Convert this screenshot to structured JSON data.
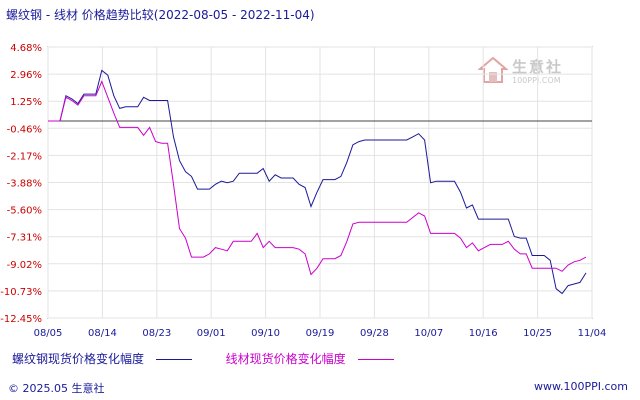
{
  "title": "螺纹钢 - 线材 价格趋势比较(2022-08-05 - 2022-11-04)",
  "watermark": {
    "name": "生意社",
    "url": "100PPI.COM"
  },
  "footer": {
    "copyright": "© 2025.05 生意社",
    "site": "www.100PPI.com"
  },
  "chart_data": {
    "type": "line",
    "title": "螺纹钢 - 线材 价格趋势比较(2022-08-05 - 2022-11-04)",
    "xlabel": "",
    "ylabel": "",
    "x_tick_labels": [
      "08/05",
      "08/14",
      "08/23",
      "09/01",
      "09/10",
      "09/19",
      "09/28",
      "10/07",
      "10/16",
      "10/25",
      "11/04"
    ],
    "y_tick_labels": [
      "4.68%",
      "2.96%",
      "1.25%",
      "-0.46%",
      "-2.17%",
      "-3.88%",
      "-5.60%",
      "-7.31%",
      "-9.02%",
      "-10.73%",
      "-12.45%"
    ],
    "ylim": [
      -12.45,
      4.68
    ],
    "xlim_days": [
      0,
      91
    ],
    "reference_line": 0,
    "grid": true,
    "legend_position": "bottom",
    "series": [
      {
        "name": "螺纹钢现货价格变化幅度",
        "color": "#1a1a9a",
        "points": [
          [
            0,
            0
          ],
          [
            1,
            0
          ],
          [
            2,
            0
          ],
          [
            3,
            1.6
          ],
          [
            4,
            1.4
          ],
          [
            5,
            1.1
          ],
          [
            6,
            1.7
          ],
          [
            7,
            1.7
          ],
          [
            8,
            1.7
          ],
          [
            9,
            3.2
          ],
          [
            10,
            2.9
          ],
          [
            11,
            1.6
          ],
          [
            12,
            0.8
          ],
          [
            13,
            0.9
          ],
          [
            14,
            0.9
          ],
          [
            15,
            0.9
          ],
          [
            16,
            1.5
          ],
          [
            17,
            1.3
          ],
          [
            18,
            1.3
          ],
          [
            19,
            1.3
          ],
          [
            20,
            1.3
          ],
          [
            21,
            -1.0
          ],
          [
            22,
            -2.5
          ],
          [
            23,
            -3.2
          ],
          [
            24,
            -3.5
          ],
          [
            25,
            -4.3
          ],
          [
            26,
            -4.3
          ],
          [
            27,
            -4.3
          ],
          [
            28,
            -4.0
          ],
          [
            29,
            -3.8
          ],
          [
            30,
            -3.9
          ],
          [
            31,
            -3.8
          ],
          [
            32,
            -3.3
          ],
          [
            33,
            -3.3
          ],
          [
            34,
            -3.3
          ],
          [
            35,
            -3.3
          ],
          [
            36,
            -3.0
          ],
          [
            37,
            -3.8
          ],
          [
            38,
            -3.4
          ],
          [
            39,
            -3.6
          ],
          [
            40,
            -3.6
          ],
          [
            41,
            -3.6
          ],
          [
            42,
            -4.0
          ],
          [
            43,
            -4.2
          ],
          [
            44,
            -5.4
          ],
          [
            45,
            -4.5
          ],
          [
            46,
            -3.7
          ],
          [
            47,
            -3.7
          ],
          [
            48,
            -3.7
          ],
          [
            49,
            -3.5
          ],
          [
            50,
            -2.6
          ],
          [
            51,
            -1.5
          ],
          [
            52,
            -1.3
          ],
          [
            53,
            -1.2
          ],
          [
            54,
            -1.2
          ],
          [
            55,
            -1.2
          ],
          [
            56,
            -1.2
          ],
          [
            57,
            -1.2
          ],
          [
            58,
            -1.2
          ],
          [
            59,
            -1.2
          ],
          [
            60,
            -1.2
          ],
          [
            61,
            -1.0
          ],
          [
            62,
            -0.8
          ],
          [
            63,
            -1.2
          ],
          [
            64,
            -3.9
          ],
          [
            65,
            -3.8
          ],
          [
            66,
            -3.8
          ],
          [
            67,
            -3.8
          ],
          [
            68,
            -3.8
          ],
          [
            69,
            -4.5
          ],
          [
            70,
            -5.5
          ],
          [
            71,
            -5.3
          ],
          [
            72,
            -6.2
          ],
          [
            73,
            -6.2
          ],
          [
            74,
            -6.2
          ],
          [
            75,
            -6.2
          ],
          [
            76,
            -6.2
          ],
          [
            77,
            -6.2
          ],
          [
            78,
            -7.3
          ],
          [
            79,
            -7.4
          ],
          [
            80,
            -7.4
          ],
          [
            81,
            -8.5
          ],
          [
            82,
            -8.5
          ],
          [
            83,
            -8.5
          ],
          [
            84,
            -8.8
          ],
          [
            85,
            -10.6
          ],
          [
            86,
            -10.9
          ],
          [
            87,
            -10.4
          ],
          [
            88,
            -10.3
          ],
          [
            89,
            -10.2
          ],
          [
            90,
            -9.6
          ]
        ]
      },
      {
        "name": "线材现货价格变化幅度",
        "color": "#cc00cc",
        "points": [
          [
            0,
            0
          ],
          [
            1,
            0
          ],
          [
            2,
            0
          ],
          [
            3,
            1.5
          ],
          [
            4,
            1.3
          ],
          [
            5,
            1.0
          ],
          [
            6,
            1.6
          ],
          [
            7,
            1.6
          ],
          [
            8,
            1.6
          ],
          [
            9,
            2.5
          ],
          [
            10,
            1.5
          ],
          [
            11,
            0.5
          ],
          [
            12,
            -0.4
          ],
          [
            13,
            -0.4
          ],
          [
            14,
            -0.4
          ],
          [
            15,
            -0.4
          ],
          [
            16,
            -0.9
          ],
          [
            17,
            -0.4
          ],
          [
            18,
            -1.3
          ],
          [
            19,
            -1.4
          ],
          [
            20,
            -1.4
          ],
          [
            21,
            -4.0
          ],
          [
            22,
            -6.8
          ],
          [
            23,
            -7.4
          ],
          [
            24,
            -8.6
          ],
          [
            25,
            -8.6
          ],
          [
            26,
            -8.6
          ],
          [
            27,
            -8.4
          ],
          [
            28,
            -8.0
          ],
          [
            29,
            -8.1
          ],
          [
            30,
            -8.2
          ],
          [
            31,
            -7.6
          ],
          [
            32,
            -7.6
          ],
          [
            33,
            -7.6
          ],
          [
            34,
            -7.6
          ],
          [
            35,
            -7.1
          ],
          [
            36,
            -8.0
          ],
          [
            37,
            -7.6
          ],
          [
            38,
            -8.0
          ],
          [
            39,
            -8.0
          ],
          [
            40,
            -8.0
          ],
          [
            41,
            -8.0
          ],
          [
            42,
            -8.1
          ],
          [
            43,
            -8.4
          ],
          [
            44,
            -9.7
          ],
          [
            45,
            -9.3
          ],
          [
            46,
            -8.7
          ],
          [
            47,
            -8.7
          ],
          [
            48,
            -8.7
          ],
          [
            49,
            -8.5
          ],
          [
            50,
            -7.6
          ],
          [
            51,
            -6.5
          ],
          [
            52,
            -6.4
          ],
          [
            53,
            -6.4
          ],
          [
            54,
            -6.4
          ],
          [
            55,
            -6.4
          ],
          [
            56,
            -6.4
          ],
          [
            57,
            -6.4
          ],
          [
            58,
            -6.4
          ],
          [
            59,
            -6.4
          ],
          [
            60,
            -6.4
          ],
          [
            61,
            -6.1
          ],
          [
            62,
            -5.8
          ],
          [
            63,
            -6.0
          ],
          [
            64,
            -7.1
          ],
          [
            65,
            -7.1
          ],
          [
            66,
            -7.1
          ],
          [
            67,
            -7.1
          ],
          [
            68,
            -7.1
          ],
          [
            69,
            -7.4
          ],
          [
            70,
            -8.0
          ],
          [
            71,
            -7.7
          ],
          [
            72,
            -8.2
          ],
          [
            73,
            -8.0
          ],
          [
            74,
            -7.8
          ],
          [
            75,
            -7.8
          ],
          [
            76,
            -7.8
          ],
          [
            77,
            -7.6
          ],
          [
            78,
            -8.1
          ],
          [
            79,
            -8.4
          ],
          [
            80,
            -8.4
          ],
          [
            81,
            -9.3
          ],
          [
            82,
            -9.3
          ],
          [
            83,
            -9.3
          ],
          [
            84,
            -9.3
          ],
          [
            85,
            -9.3
          ],
          [
            86,
            -9.5
          ],
          [
            87,
            -9.1
          ],
          [
            88,
            -8.9
          ],
          [
            89,
            -8.8
          ],
          [
            90,
            -8.6
          ]
        ]
      }
    ]
  }
}
